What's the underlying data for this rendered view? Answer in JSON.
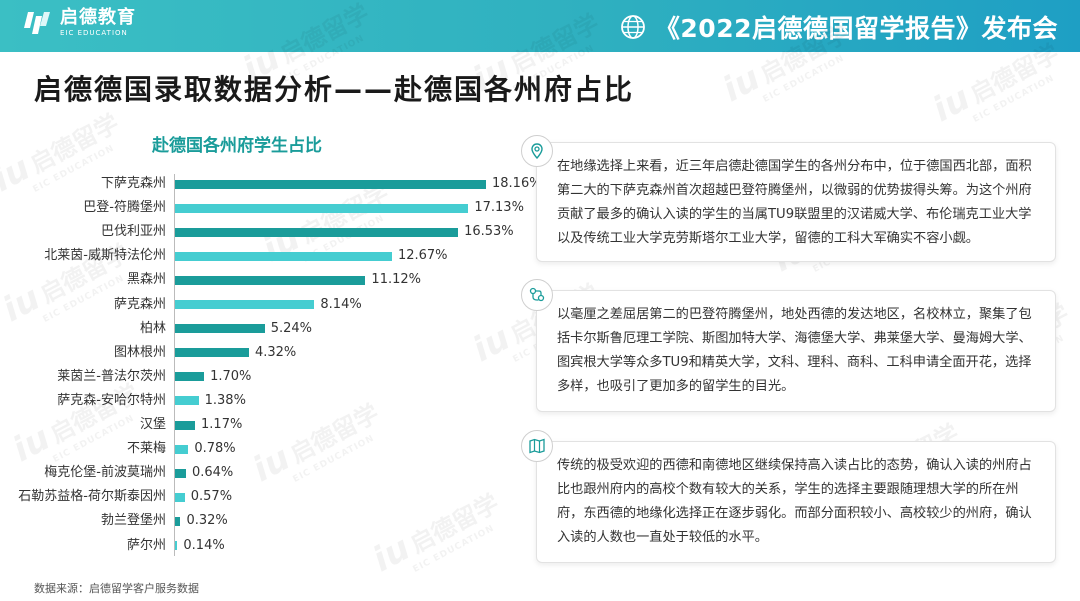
{
  "header": {
    "logo_cn": "启德教育",
    "logo_en": "EIC EDUCATION",
    "event_title": "《2022启德德国留学报告》发布会"
  },
  "page": {
    "title": "启德德国录取数据分析——赴德国各州府占比",
    "source": "数据来源：启德留学客户服务数据"
  },
  "watermark": {
    "big": "iu",
    "cn": "启德留学",
    "en": "EIC EDUCATION"
  },
  "colors": {
    "dark_bar": "#1a9c9a",
    "light_bar": "#45cdd1",
    "header": "#2fb0c0"
  },
  "chart_data": {
    "type": "bar",
    "orientation": "horizontal",
    "title": "赴德国各州府学生占比",
    "categories": [
      "下萨克森州",
      "巴登-符腾堡州",
      "巴伐利亚州",
      "北莱茵-威斯特法伦州",
      "黑森州",
      "萨克森州",
      "柏林",
      "图林根州",
      "莱茵兰-普法尔茨州",
      "萨克森-安哈尔特州",
      "汉堡",
      "不莱梅",
      "梅克伦堡-前波莫瑞州",
      "石勒苏益格-荷尔斯泰因州",
      "勃兰登堡州",
      "萨尔州"
    ],
    "values": [
      18.16,
      17.13,
      16.53,
      12.67,
      11.12,
      8.14,
      5.24,
      4.32,
      1.7,
      1.38,
      1.17,
      0.78,
      0.64,
      0.57,
      0.32,
      0.14
    ],
    "labels": [
      "18.16%",
      "17.13%",
      "16.53%",
      "12.67%",
      "11.12%",
      "8.14%",
      "5.24%",
      "4.32%",
      "1.70%",
      "1.38%",
      "1.17%",
      "0.78%",
      "0.64%",
      "0.57%",
      "0.32%",
      "0.14%"
    ],
    "bar_colors": [
      "dark",
      "light",
      "dark",
      "light",
      "dark",
      "light",
      "dark",
      "dark",
      "dark",
      "light",
      "dark",
      "light",
      "dark",
      "light",
      "dark",
      "light"
    ],
    "xlim": [
      0,
      18.16
    ],
    "grid": false
  },
  "cards": [
    {
      "icon": "location-pin-icon",
      "text": "在地缘选择上来看，近三年启德赴德国学生的各州分布中，位于德国西北部，面积第二大的下萨克森州首次超越巴登符腾堡州，以微弱的优势拔得头筹。为这个州府贡献了最多的确认入读的学生的当属TU9联盟里的汉诺威大学、布伦瑞克工业大学以及传统工业大学克劳斯塔尔工业大学，留德的工科大军确实不容小觑。"
    },
    {
      "icon": "route-map-icon",
      "text": "以毫厘之差屈居第二的巴登符腾堡州，地处西德的发达地区，名校林立，聚集了包括卡尔斯鲁厄理工学院、斯图加特大学、海德堡大学、弗莱堡大学、曼海姆大学、图宾根大学等众多TU9和精英大学，文科、理科、商科、工科申请全面开花，选择多样，也吸引了更加多的留学生的目光。"
    },
    {
      "icon": "folded-map-icon",
      "text": "传统的极受欢迎的西德和南德地区继续保持高入读占比的态势，确认入读的州府占比也跟州府内的高校个数有较大的关系，学生的选择主要跟随理想大学的所在州府，东西德的地缘化选择正在逐步弱化。而部分面积较小、高校较少的州府，确认入读的人数也一直处于较低的水平。"
    }
  ]
}
